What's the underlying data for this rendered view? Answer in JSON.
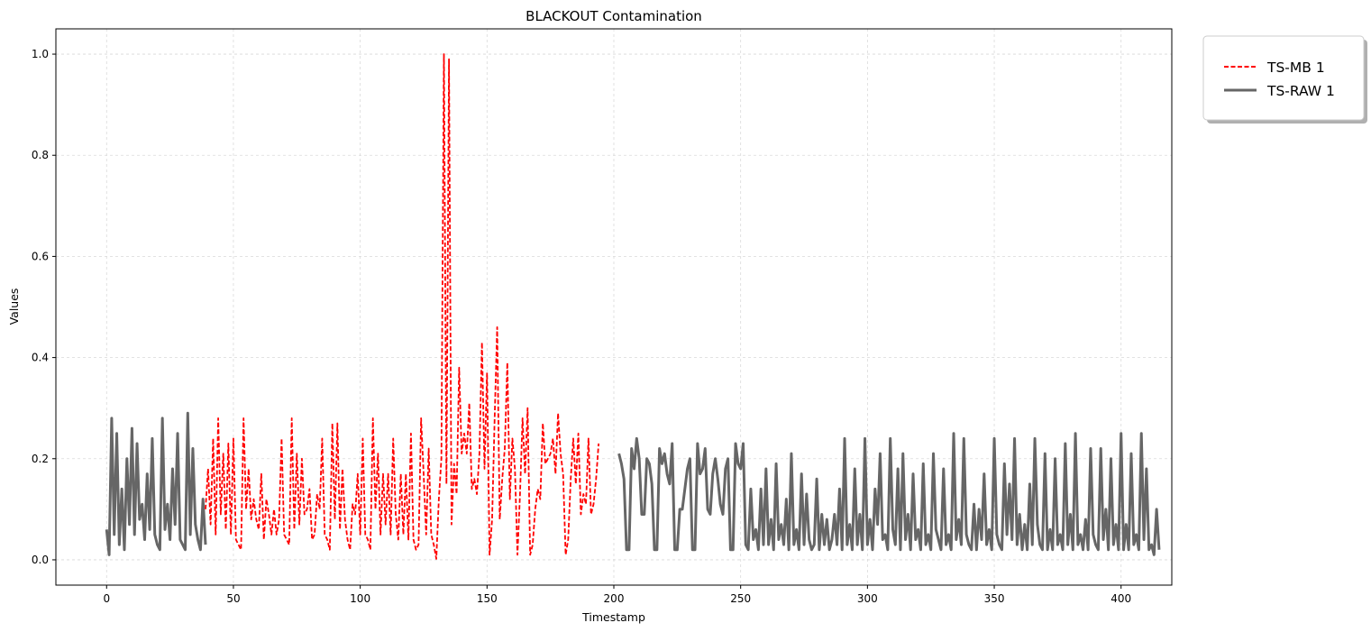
{
  "chart_data": {
    "type": "line",
    "title": "BLACKOUT Contamination",
    "xlabel": "Timestamp",
    "ylabel": "Values",
    "xlim": [
      -20,
      420
    ],
    "ylim": [
      -0.05,
      1.05
    ],
    "xticks": [
      0,
      50,
      100,
      150,
      200,
      250,
      300,
      350,
      400
    ],
    "yticks": [
      0.0,
      0.2,
      0.4,
      0.6,
      0.8,
      1.0
    ],
    "xtick_labels": [
      "0",
      "50",
      "100",
      "150",
      "200",
      "250",
      "300",
      "350",
      "400"
    ],
    "ytick_labels": [
      "0.0",
      "0.2",
      "0.4",
      "0.6",
      "0.8",
      "1.0"
    ],
    "grid": true,
    "legend_placement": "outside-top-right",
    "series": [
      {
        "name": "TS-MB 1",
        "color": "#ff0000",
        "style": "dashed",
        "x_start": 39,
        "values": [
          0.1,
          0.18,
          0.07,
          0.24,
          0.05,
          0.28,
          0.09,
          0.21,
          0.06,
          0.23,
          0.05,
          0.24,
          0.04,
          0.03,
          0.02,
          0.28,
          0.1,
          0.18,
          0.08,
          0.12,
          0.08,
          0.06,
          0.17,
          0.04,
          0.12,
          0.09,
          0.05,
          0.1,
          0.05,
          0.08,
          0.24,
          0.05,
          0.04,
          0.03,
          0.28,
          0.06,
          0.21,
          0.07,
          0.2,
          0.09,
          0.1,
          0.14,
          0.04,
          0.05,
          0.13,
          0.1,
          0.24,
          0.05,
          0.04,
          0.02,
          0.27,
          0.08,
          0.27,
          0.06,
          0.18,
          0.08,
          0.04,
          0.02,
          0.11,
          0.09,
          0.17,
          0.05,
          0.24,
          0.05,
          0.04,
          0.02,
          0.28,
          0.1,
          0.21,
          0.05,
          0.17,
          0.07,
          0.17,
          0.05,
          0.24,
          0.09,
          0.04,
          0.17,
          0.05,
          0.17,
          0.04,
          0.25,
          0.04,
          0.02,
          0.03,
          0.28,
          0.17,
          0.05,
          0.22,
          0.05,
          0.03,
          0.002,
          0.12,
          0.2,
          1.0,
          0.15,
          0.99,
          0.07,
          0.19,
          0.13,
          0.38,
          0.21,
          0.25,
          0.21,
          0.31,
          0.14,
          0.16,
          0.13,
          0.21,
          0.43,
          0.18,
          0.37,
          0.01,
          0.08,
          0.28,
          0.46,
          0.08,
          0.16,
          0.22,
          0.39,
          0.12,
          0.24,
          0.18,
          0.01,
          0.13,
          0.28,
          0.17,
          0.3,
          0.01,
          0.03,
          0.1,
          0.14,
          0.12,
          0.27,
          0.19,
          0.2,
          0.21,
          0.24,
          0.17,
          0.29,
          0.21,
          0.17,
          0.01,
          0.04,
          0.16,
          0.24,
          0.15,
          0.25,
          0.09,
          0.13,
          0.11,
          0.24,
          0.09,
          0.11,
          0.16,
          0.23
        ]
      },
      {
        "name": "TS-RAW 1",
        "color": "#666666",
        "style": "solid",
        "x_start": 0,
        "values": [
          0.06,
          0.01,
          0.28,
          0.05,
          0.25,
          0.03,
          0.14,
          0.02,
          0.2,
          0.07,
          0.26,
          0.05,
          0.23,
          0.08,
          0.11,
          0.04,
          0.17,
          0.06,
          0.24,
          0.05,
          0.03,
          0.02,
          0.28,
          0.06,
          0.11,
          0.04,
          0.18,
          0.07,
          0.25,
          0.04,
          0.03,
          0.02,
          0.29,
          0.05,
          0.22,
          0.07,
          0.04,
          0.02,
          0.12,
          0.03,
          null,
          null,
          null,
          null,
          null,
          null,
          null,
          null,
          null,
          null,
          null,
          null,
          null,
          null,
          null,
          null,
          null,
          null,
          null,
          null,
          null,
          null,
          null,
          null,
          null,
          null,
          null,
          null,
          null,
          null,
          null,
          null,
          null,
          null,
          null,
          null,
          null,
          null,
          null,
          null,
          null,
          null,
          null,
          null,
          null,
          null,
          null,
          null,
          null,
          null,
          null,
          null,
          null,
          null,
          null,
          null,
          null,
          null,
          null,
          null,
          null,
          null,
          null,
          null,
          null,
          null,
          null,
          null,
          null,
          null,
          null,
          null,
          null,
          null,
          null,
          null,
          null,
          null,
          null,
          null,
          null,
          null,
          null,
          null,
          null,
          null,
          null,
          null,
          null,
          null,
          null,
          null,
          null,
          null,
          null,
          null,
          null,
          null,
          null,
          null,
          null,
          null,
          null,
          null,
          null,
          null,
          null,
          null,
          null,
          null,
          null,
          null,
          null,
          null,
          null,
          null,
          null,
          null,
          null,
          null,
          null,
          null,
          null,
          null,
          null,
          null,
          null,
          null,
          null,
          null,
          null,
          null,
          null,
          null,
          null,
          null,
          null,
          null,
          null,
          null,
          null,
          null,
          null,
          null,
          null,
          null,
          null,
          null,
          null,
          null,
          null,
          null,
          null,
          null,
          null,
          null,
          null,
          null,
          null,
          null,
          null,
          null,
          0.21,
          0.19,
          0.16,
          0.02,
          0.02,
          0.22,
          0.18,
          0.24,
          0.2,
          0.09,
          0.09,
          0.2,
          0.19,
          0.15,
          0.02,
          0.02,
          0.22,
          0.19,
          0.21,
          0.17,
          0.15,
          0.23,
          0.02,
          0.02,
          0.1,
          0.1,
          0.14,
          0.18,
          0.2,
          0.02,
          0.02,
          0.23,
          0.17,
          0.18,
          0.22,
          0.1,
          0.09,
          0.17,
          0.2,
          0.16,
          0.11,
          0.09,
          0.18,
          0.2,
          0.02,
          0.02,
          0.23,
          0.19,
          0.18,
          0.23,
          0.03,
          0.02,
          0.14,
          0.04,
          0.06,
          0.02,
          0.14,
          0.03,
          0.18,
          0.03,
          0.08,
          0.02,
          0.19,
          0.04,
          0.07,
          0.03,
          0.12,
          0.02,
          0.21,
          0.03,
          0.06,
          0.02,
          0.17,
          0.03,
          0.13,
          0.04,
          0.02,
          0.03,
          0.16,
          0.02,
          0.09,
          0.03,
          0.08,
          0.02,
          0.04,
          0.09,
          0.03,
          0.14,
          0.02,
          0.24,
          0.03,
          0.07,
          0.02,
          0.18,
          0.03,
          0.09,
          0.02,
          0.24,
          0.03,
          0.08,
          0.02,
          0.14,
          0.07,
          0.21,
          0.04,
          0.05,
          0.02,
          0.24,
          0.06,
          0.03,
          0.18,
          0.02,
          0.21,
          0.04,
          0.09,
          0.02,
          0.17,
          0.04,
          0.06,
          0.02,
          0.19,
          0.03,
          0.05,
          0.02,
          0.21,
          0.06,
          0.04,
          0.02,
          0.18,
          0.03,
          0.05,
          0.02,
          0.25,
          0.04,
          0.08,
          0.03,
          0.24,
          0.05,
          0.03,
          0.02,
          0.11,
          0.02,
          0.1,
          0.04,
          0.17,
          0.03,
          0.06,
          0.02,
          0.24,
          0.05,
          0.03,
          0.02,
          0.19,
          0.05,
          0.15,
          0.04,
          0.24,
          0.03,
          0.09,
          0.02,
          0.07,
          0.02,
          0.15,
          0.03,
          0.24,
          0.07,
          0.03,
          0.02,
          0.21,
          0.02,
          0.06,
          0.02,
          0.2,
          0.03,
          0.05,
          0.02,
          0.23,
          0.03,
          0.09,
          0.02,
          0.25,
          0.03,
          0.05,
          0.02,
          0.08,
          0.02,
          0.22,
          0.05,
          0.03,
          0.02,
          0.22,
          0.04,
          0.1,
          0.02,
          0.2,
          0.03,
          0.07,
          0.02,
          0.25,
          0.02,
          0.07,
          0.02,
          0.21,
          0.03,
          0.05,
          0.02,
          0.25,
          0.04,
          0.18,
          0.02,
          0.03,
          0.01,
          0.1,
          0.02
        ]
      }
    ]
  }
}
